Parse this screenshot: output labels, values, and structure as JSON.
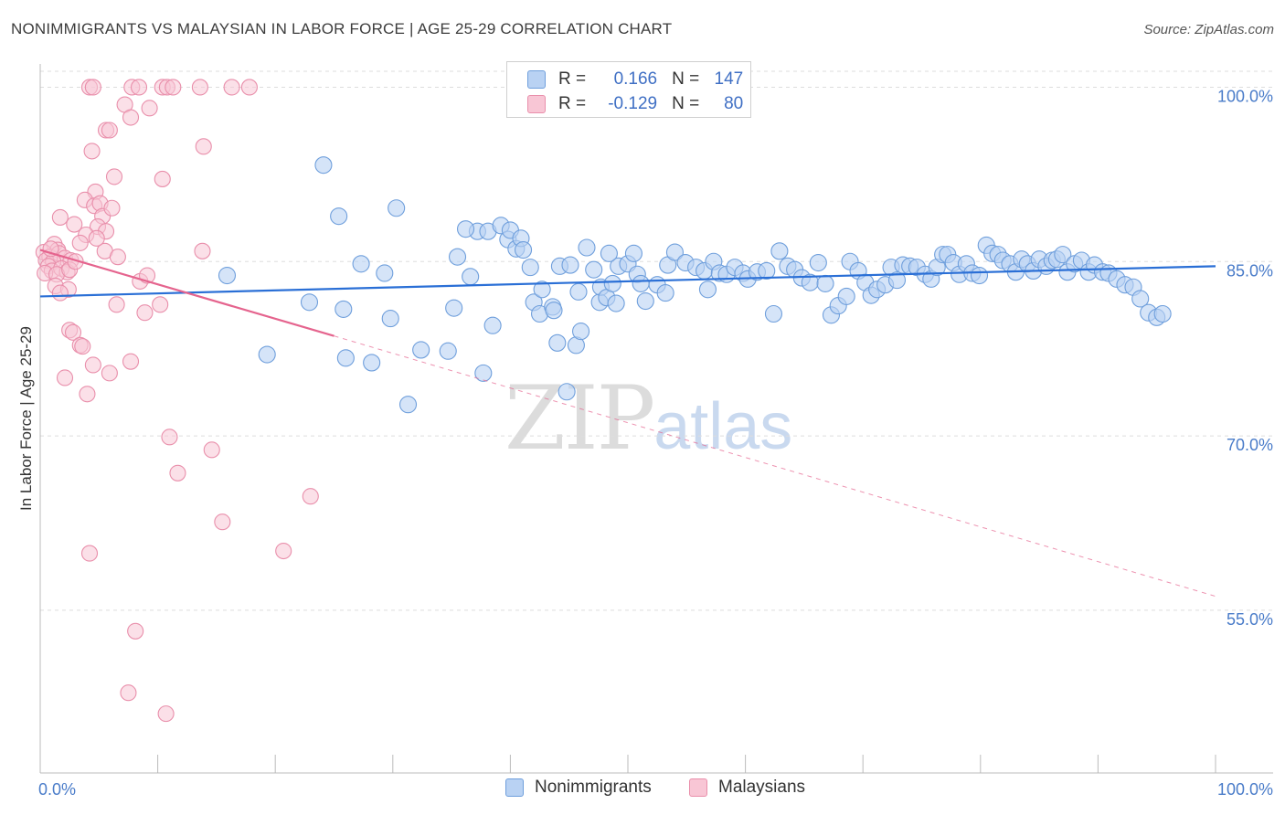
{
  "header": {
    "title": "NONIMMIGRANTS VS MALAYSIAN IN LABOR FORCE | AGE 25-29 CORRELATION CHART",
    "source": "Source: ZipAtlas.com"
  },
  "watermark": {
    "zip": "ZIP",
    "atlas": "atlas"
  },
  "legend": {
    "rows": [
      {
        "r_label": "R =",
        "r_value": "0.166",
        "n_label": "N =",
        "n_value": "147",
        "color": "#a9c7f0",
        "border": "#6f9fdc"
      },
      {
        "r_label": "R =",
        "r_value": "-0.129",
        "n_label": "N =",
        "n_value": "80",
        "color": "#f7b9cb",
        "border": "#e98fab"
      }
    ]
  },
  "bottom_legend": {
    "items": [
      "Nonimmigrants",
      "Malaysians"
    ]
  },
  "colors": {
    "blue": "#6f9fdc",
    "blue_fill": "#b9d2f3",
    "blue_line": "#2a6fd6",
    "pink": "#e98fab",
    "pink_fill": "#f8c6d5",
    "pink_line": "#e5648e",
    "grid": "#dddddd",
    "tick_label": "#4a7cc9"
  },
  "chart_data": {
    "type": "scatter",
    "title": "NONIMMIGRANTS VS MALAYSIAN IN LABOR FORCE | AGE 25-29 CORRELATION CHART",
    "xlabel": "",
    "ylabel": "In Labor Force | Age 25-29",
    "xlim": [
      0,
      100
    ],
    "ylim": [
      41,
      102
    ],
    "x_tick_labels": [
      "0.0%",
      "100.0%"
    ],
    "y_ticks": [
      55,
      70,
      85,
      100
    ],
    "y_tick_labels": [
      "55.0%",
      "70.0%",
      "85.0%",
      "100.0%"
    ],
    "series": [
      {
        "name": "Nonimmigrants",
        "r": 0.166,
        "n": 147,
        "trend": {
          "x": [
            0,
            100
          ],
          "y": [
            82.0,
            84.6
          ]
        },
        "points": [
          [
            24.1,
            93.3
          ],
          [
            25.4,
            88.9
          ],
          [
            30.3,
            89.6
          ],
          [
            35.5,
            85.4
          ],
          [
            35.2,
            81.0
          ],
          [
            34.7,
            77.3
          ],
          [
            36.6,
            83.7
          ],
          [
            37.2,
            87.6
          ],
          [
            36.2,
            87.8
          ],
          [
            38.1,
            87.6
          ],
          [
            39.2,
            88.1
          ],
          [
            39.8,
            86.9
          ],
          [
            40.0,
            87.7
          ],
          [
            40.5,
            86.1
          ],
          [
            40.9,
            87.0
          ],
          [
            41.1,
            86.0
          ],
          [
            42.0,
            81.5
          ],
          [
            42.5,
            80.5
          ],
          [
            42.7,
            82.6
          ],
          [
            43.6,
            81.1
          ],
          [
            43.7,
            80.8
          ],
          [
            44.0,
            78.0
          ],
          [
            44.2,
            84.6
          ],
          [
            45.1,
            84.7
          ],
          [
            45.8,
            82.4
          ],
          [
            45.6,
            77.8
          ],
          [
            46.0,
            79.0
          ],
          [
            46.5,
            86.2
          ],
          [
            47.1,
            84.3
          ],
          [
            47.6,
            81.5
          ],
          [
            47.7,
            82.8
          ],
          [
            48.2,
            81.9
          ],
          [
            48.7,
            83.1
          ],
          [
            49.0,
            81.4
          ],
          [
            49.2,
            84.6
          ],
          [
            50.0,
            84.8
          ],
          [
            50.5,
            85.7
          ],
          [
            50.8,
            83.9
          ],
          [
            51.1,
            83.1
          ],
          [
            51.5,
            81.6
          ],
          [
            52.5,
            83.0
          ],
          [
            53.2,
            82.3
          ],
          [
            53.4,
            84.7
          ],
          [
            54.0,
            85.8
          ],
          [
            54.9,
            84.9
          ],
          [
            55.8,
            84.5
          ],
          [
            56.5,
            84.2
          ],
          [
            56.8,
            82.6
          ],
          [
            57.3,
            85.0
          ],
          [
            57.8,
            84.0
          ],
          [
            58.4,
            83.9
          ],
          [
            59.1,
            84.5
          ],
          [
            59.8,
            84.0
          ],
          [
            60.2,
            83.5
          ],
          [
            61.0,
            84.1
          ],
          [
            61.8,
            84.2
          ],
          [
            62.4,
            80.5
          ],
          [
            62.9,
            85.9
          ],
          [
            63.6,
            84.6
          ],
          [
            64.2,
            84.3
          ],
          [
            64.8,
            83.6
          ],
          [
            65.5,
            83.2
          ],
          [
            66.2,
            84.9
          ],
          [
            66.8,
            83.1
          ],
          [
            67.3,
            80.4
          ],
          [
            67.9,
            81.2
          ],
          [
            68.6,
            82.0
          ],
          [
            68.9,
            85.0
          ],
          [
            69.6,
            84.2
          ],
          [
            70.2,
            83.2
          ],
          [
            70.7,
            82.1
          ],
          [
            71.2,
            82.6
          ],
          [
            71.9,
            83.0
          ],
          [
            72.4,
            84.5
          ],
          [
            72.9,
            83.4
          ],
          [
            73.4,
            84.7
          ],
          [
            74.0,
            84.6
          ],
          [
            74.6,
            84.5
          ],
          [
            75.3,
            83.9
          ],
          [
            75.8,
            83.5
          ],
          [
            76.3,
            84.5
          ],
          [
            76.8,
            85.6
          ],
          [
            77.2,
            85.6
          ],
          [
            77.7,
            84.9
          ],
          [
            78.2,
            83.9
          ],
          [
            78.8,
            84.8
          ],
          [
            79.3,
            84.0
          ],
          [
            79.9,
            83.8
          ],
          [
            80.5,
            86.4
          ],
          [
            81.0,
            85.7
          ],
          [
            81.5,
            85.6
          ],
          [
            81.9,
            85.1
          ],
          [
            82.5,
            84.8
          ],
          [
            83.0,
            84.1
          ],
          [
            83.5,
            85.2
          ],
          [
            84.0,
            84.8
          ],
          [
            84.5,
            84.2
          ],
          [
            85.0,
            85.2
          ],
          [
            85.6,
            84.6
          ],
          [
            86.1,
            85.1
          ],
          [
            86.5,
            85.2
          ],
          [
            87.0,
            85.6
          ],
          [
            87.4,
            84.1
          ],
          [
            88.0,
            84.8
          ],
          [
            88.6,
            85.1
          ],
          [
            89.2,
            84.1
          ],
          [
            89.7,
            84.7
          ],
          [
            90.4,
            84.1
          ],
          [
            90.9,
            84.0
          ],
          [
            91.6,
            83.5
          ],
          [
            92.3,
            83.0
          ],
          [
            93.0,
            82.8
          ],
          [
            93.6,
            81.8
          ],
          [
            94.3,
            80.6
          ],
          [
            95.0,
            80.2
          ],
          [
            95.5,
            80.5
          ],
          [
            15.9,
            83.8
          ],
          [
            22.9,
            81.5
          ],
          [
            19.3,
            77.0
          ],
          [
            32.4,
            77.4
          ],
          [
            31.3,
            72.7
          ],
          [
            25.8,
            80.9
          ],
          [
            26.0,
            76.7
          ],
          [
            28.2,
            76.3
          ],
          [
            29.3,
            84.0
          ],
          [
            29.8,
            80.1
          ],
          [
            27.3,
            84.8
          ],
          [
            37.7,
            75.4
          ],
          [
            44.8,
            73.8
          ],
          [
            38.5,
            79.5
          ],
          [
            41.7,
            84.5
          ],
          [
            48.4,
            85.7
          ]
        ]
      },
      {
        "name": "Malaysians",
        "r": -0.129,
        "n": 80,
        "trend_solid": {
          "x": [
            0,
            25
          ],
          "y": [
            86.0,
            78.6
          ]
        },
        "trend_dashed": {
          "x": [
            25,
            100
          ],
          "y": [
            78.6,
            56.2
          ]
        },
        "points": [
          [
            4.2,
            100
          ],
          [
            4.5,
            100
          ],
          [
            7.8,
            100
          ],
          [
            8.4,
            100
          ],
          [
            10.4,
            100
          ],
          [
            10.8,
            100
          ],
          [
            11.3,
            100
          ],
          [
            13.6,
            100
          ],
          [
            16.3,
            100
          ],
          [
            17.8,
            100
          ],
          [
            7.2,
            98.5
          ],
          [
            7.7,
            97.4
          ],
          [
            5.6,
            96.3
          ],
          [
            5.9,
            96.3
          ],
          [
            13.9,
            94.9
          ],
          [
            4.4,
            94.5
          ],
          [
            6.3,
            92.3
          ],
          [
            10.4,
            92.1
          ],
          [
            4.7,
            91.0
          ],
          [
            3.8,
            90.3
          ],
          [
            4.6,
            89.8
          ],
          [
            5.1,
            90.0
          ],
          [
            5.3,
            88.9
          ],
          [
            1.7,
            88.8
          ],
          [
            2.9,
            88.2
          ],
          [
            4.9,
            88.0
          ],
          [
            5.6,
            87.6
          ],
          [
            3.9,
            87.3
          ],
          [
            3.4,
            86.6
          ],
          [
            1.2,
            86.5
          ],
          [
            1.5,
            86.0
          ],
          [
            0.3,
            85.8
          ],
          [
            0.8,
            85.4
          ],
          [
            1.6,
            85.7
          ],
          [
            2.1,
            85.3
          ],
          [
            0.5,
            85.1
          ],
          [
            1.1,
            85.0
          ],
          [
            2.6,
            85.1
          ],
          [
            0.7,
            84.6
          ],
          [
            1.0,
            84.2
          ],
          [
            1.8,
            84.4
          ],
          [
            2.3,
            84.1
          ],
          [
            0.4,
            84.0
          ],
          [
            1.4,
            83.9
          ],
          [
            2.5,
            84.3
          ],
          [
            5.5,
            85.9
          ],
          [
            6.6,
            85.4
          ],
          [
            8.5,
            83.3
          ],
          [
            9.1,
            83.8
          ],
          [
            13.8,
            85.9
          ],
          [
            1.3,
            82.9
          ],
          [
            2.4,
            82.6
          ],
          [
            1.7,
            82.3
          ],
          [
            6.5,
            81.3
          ],
          [
            8.9,
            80.6
          ],
          [
            10.2,
            81.3
          ],
          [
            2.5,
            79.1
          ],
          [
            2.8,
            78.9
          ],
          [
            3.4,
            77.8
          ],
          [
            3.6,
            77.7
          ],
          [
            4.5,
            76.1
          ],
          [
            7.7,
            76.4
          ],
          [
            5.9,
            75.4
          ],
          [
            2.1,
            75.0
          ],
          [
            4.0,
            73.6
          ],
          [
            11.0,
            69.9
          ],
          [
            14.6,
            68.8
          ],
          [
            11.7,
            66.8
          ],
          [
            23.0,
            64.8
          ],
          [
            15.5,
            62.6
          ],
          [
            4.2,
            59.9
          ],
          [
            20.7,
            60.1
          ],
          [
            8.1,
            53.2
          ],
          [
            7.5,
            47.9
          ],
          [
            10.7,
            46.1
          ],
          [
            9.3,
            98.2
          ],
          [
            6.1,
            89.6
          ],
          [
            4.8,
            87.0
          ],
          [
            3.0,
            85.0
          ],
          [
            0.9,
            86.1
          ]
        ]
      }
    ]
  }
}
